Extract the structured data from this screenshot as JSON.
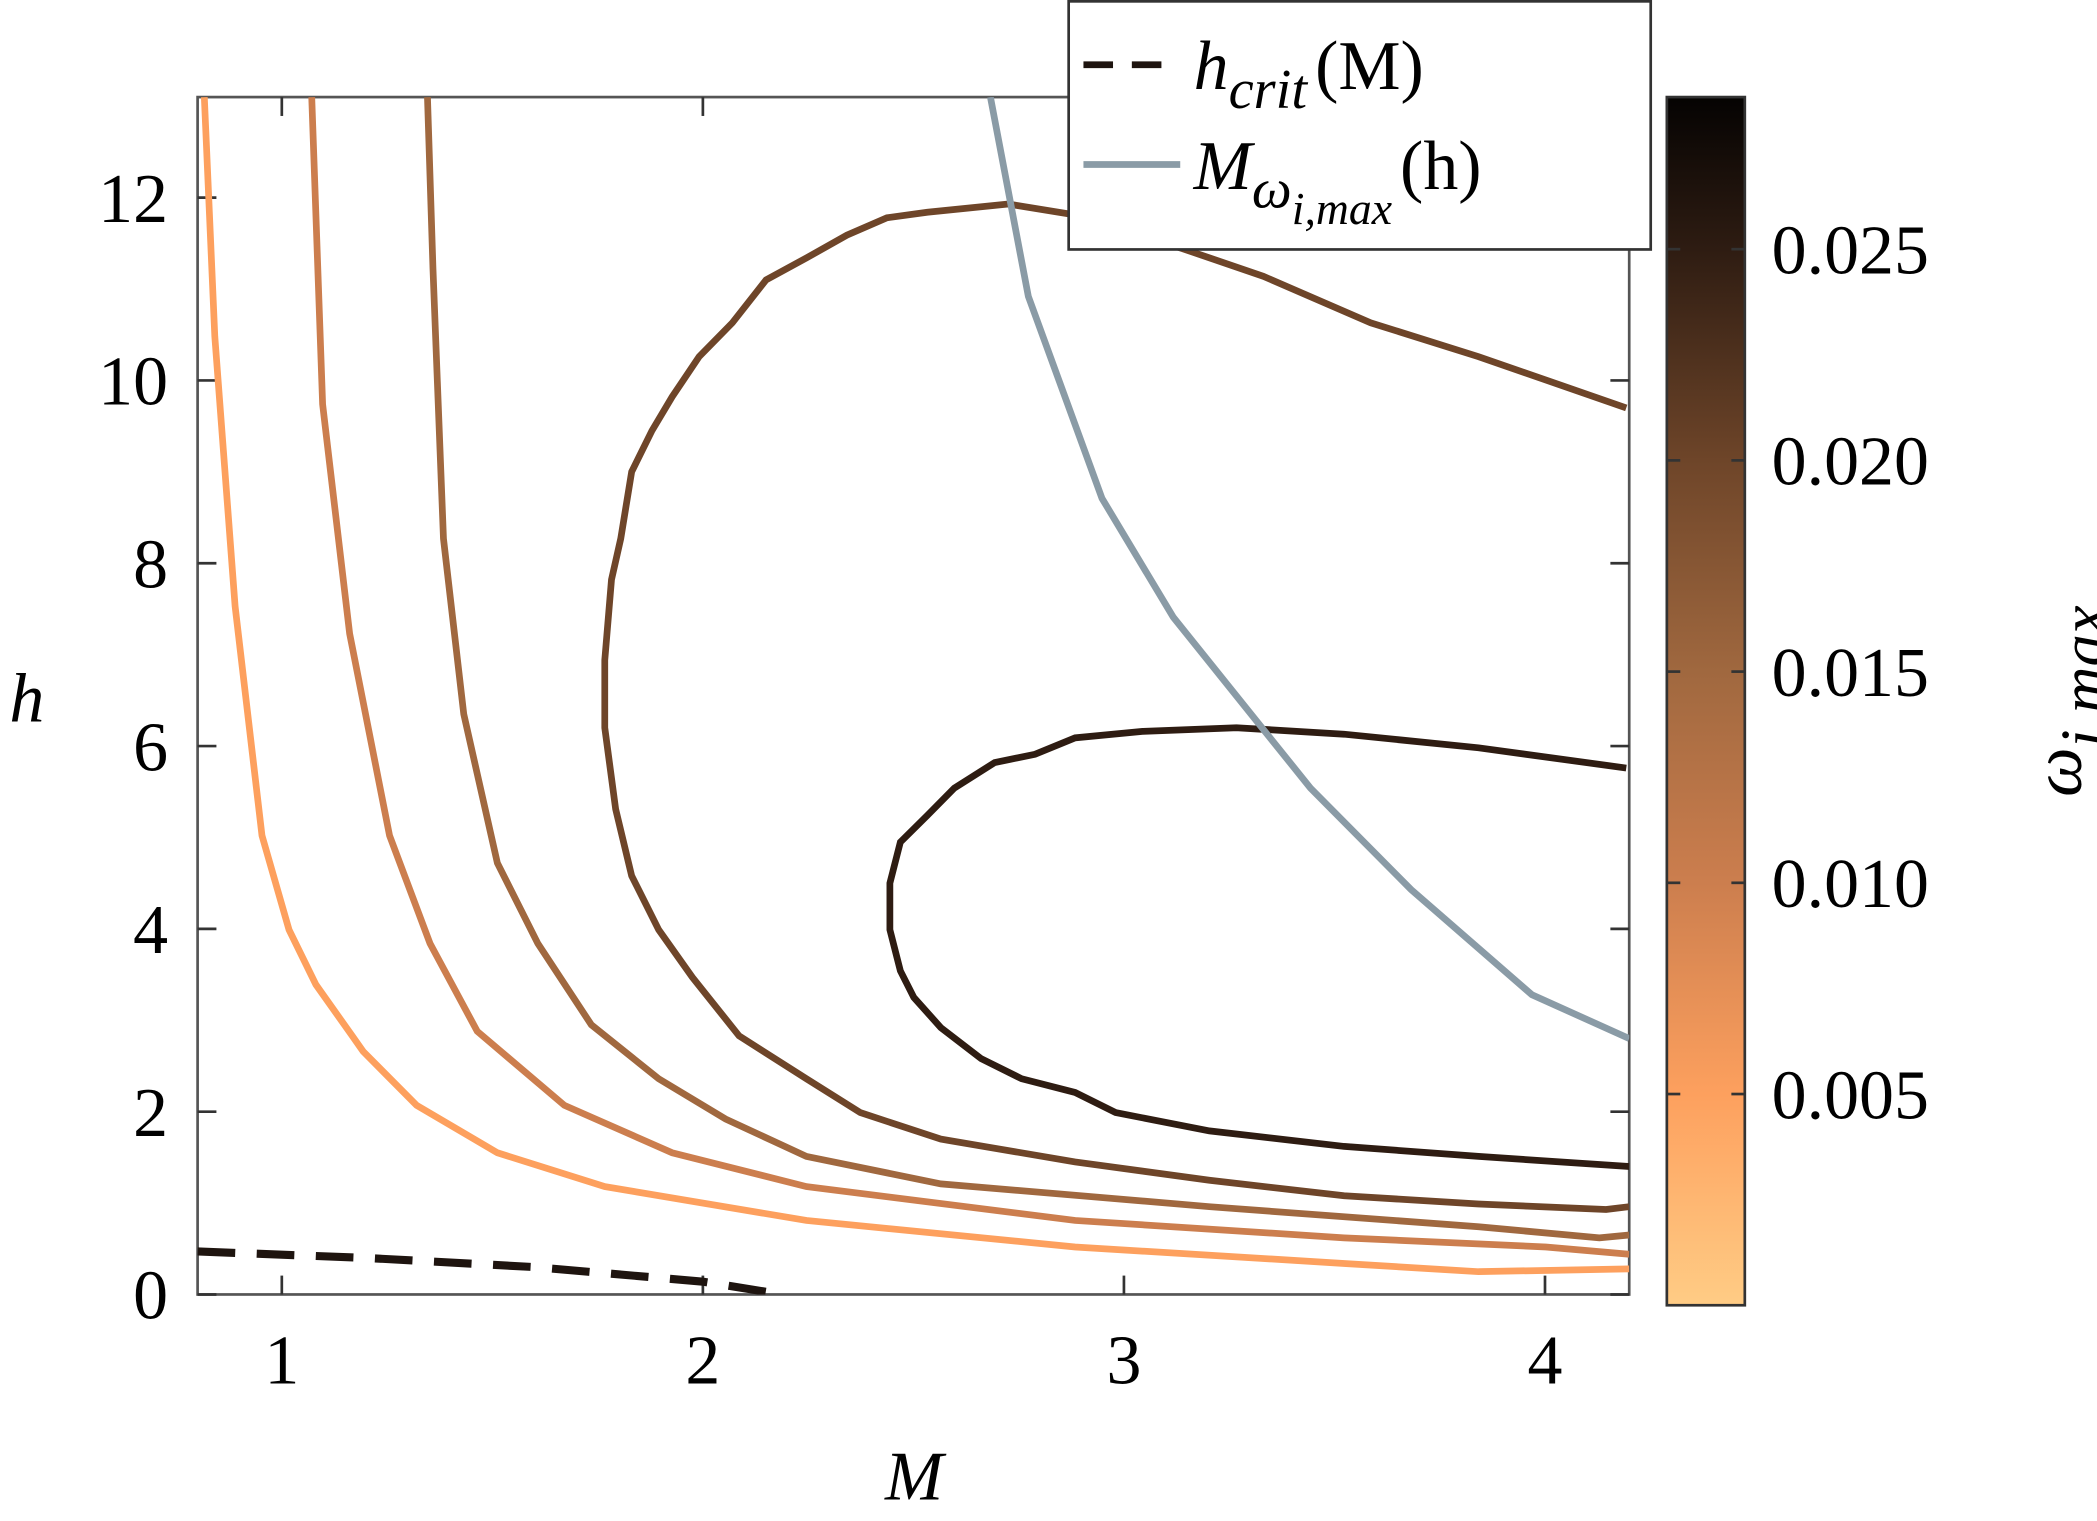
{
  "chart_data": {
    "type": "contour",
    "x_label": "M",
    "y_label": "h",
    "xlim": [
      0.8,
      4.2
    ],
    "xticks": [
      1,
      2,
      3,
      4
    ],
    "ylim": [
      0,
      13.1
    ],
    "yticks": [
      0,
      2,
      4,
      6,
      8,
      10,
      12
    ],
    "colorbar": {
      "label": "ω",
      "label_sub": "i,max",
      "clim": [
        0,
        0.0286
      ],
      "ticks": [
        0.005,
        {
          "value": 0.01,
          "label": "0.010"
        },
        0.015,
        {
          "value": 0.02,
          "label": "0.020"
        },
        0.025
      ],
      "colormap": [
        {
          "value": 0,
          "color": "#ffcc85"
        },
        {
          "value": 0.005,
          "color": "#fda05e"
        },
        {
          "value": 0.01,
          "color": "#cc7e4e"
        },
        {
          "value": 0.015,
          "color": "#a0683f"
        },
        {
          "value": 0.02,
          "color": "#6e4529"
        },
        {
          "value": 0.025,
          "color": "#2e1c12"
        },
        {
          "value": 0.0286,
          "color": "#050302"
        }
      ]
    },
    "contours": [
      {
        "level": 0.005,
        "M": [
          0.816,
          0.841,
          0.889,
          0.953,
          1.017,
          1.081,
          1.167,
          1.193,
          1.32,
          1.512,
          1.767,
          2.246,
          2.884,
          3.523,
          3.842,
          4.2
        ],
        "h": [
          13.1,
          10.48,
          7.53,
          5.02,
          3.99,
          3.39,
          2.83,
          2.66,
          2.07,
          1.55,
          1.18,
          0.81,
          0.52,
          0.34,
          0.25,
          0.28
        ]
      },
      {
        "level": 0.01,
        "M": [
          1.071,
          1.097,
          1.161,
          1.256,
          1.352,
          1.464,
          1.671,
          1.927,
          2.246,
          2.884,
          3.523,
          4.002,
          4.2
        ],
        "h": [
          13.1,
          9.74,
          7.23,
          5.02,
          3.84,
          2.88,
          2.07,
          1.55,
          1.18,
          0.81,
          0.62,
          0.52,
          0.44
        ]
      },
      {
        "level": 0.015,
        "M": [
          1.346,
          1.359,
          1.384,
          1.432,
          1.512,
          1.608,
          1.735,
          1.895,
          2.054,
          2.246,
          2.565,
          3.203,
          3.842,
          4.129,
          4.2
        ],
        "h": [
          13.1,
          11.22,
          8.27,
          6.35,
          4.72,
          3.84,
          2.95,
          2.36,
          1.92,
          1.51,
          1.21,
          0.96,
          0.74,
          0.62,
          0.65
        ]
      },
      {
        "level": 0.02,
        "M": [
          4.193,
          3.842,
          3.586,
          3.331,
          3.14,
          2.884,
          2.725,
          2.533,
          2.437,
          2.342,
          2.246,
          2.15,
          2.07,
          1.991,
          1.927,
          1.879,
          1.831,
          1.805,
          1.783,
          1.767,
          1.767,
          1.793,
          1.831,
          1.895,
          1.975,
          2.086,
          2.246,
          2.374,
          2.565,
          2.884,
          3.203,
          3.523,
          3.842,
          4.145,
          4.2
        ],
        "h": [
          9.7,
          10.26,
          10.63,
          11.14,
          11.44,
          11.81,
          11.93,
          11.84,
          11.78,
          11.59,
          11.34,
          11.1,
          10.63,
          10.26,
          9.82,
          9.45,
          9.0,
          8.27,
          7.82,
          6.94,
          6.2,
          5.31,
          4.58,
          3.99,
          3.47,
          2.83,
          2.36,
          1.99,
          1.7,
          1.45,
          1.25,
          1.08,
          0.99,
          0.93,
          0.96
        ]
      },
      {
        "level": 0.025,
        "M": [
          4.193,
          3.842,
          3.523,
          3.267,
          3.044,
          2.884,
          2.789,
          2.693,
          2.597,
          2.533,
          2.469,
          2.444,
          2.444,
          2.469,
          2.501,
          2.565,
          2.661,
          2.757,
          2.884,
          2.98,
          3.203,
          3.523,
          3.842,
          4.2
        ],
        "h": [
          5.76,
          5.98,
          6.13,
          6.2,
          6.16,
          6.09,
          5.91,
          5.82,
          5.54,
          5.24,
          4.95,
          4.5,
          3.99,
          3.54,
          3.25,
          2.92,
          2.58,
          2.36,
          2.21,
          1.99,
          1.79,
          1.62,
          1.51,
          1.4
        ]
      }
    ],
    "series": [
      {
        "name": "h",
        "name_sub": "crit",
        "name_suffix": "(M)",
        "color": "#1e140f",
        "dashed": true,
        "x": [
          0.8,
          1.2,
          1.6,
          2.0,
          2.19
        ],
        "y": [
          0.47,
          0.4,
          0.3,
          0.14,
          0
        ]
      },
      {
        "name": "M",
        "name_sub": "ω",
        "name_subsub": "i,max",
        "name_suffix": "(h)",
        "color": "#8a9ba6",
        "dashed": false,
        "x": [
          2.683,
          2.773,
          2.948,
          3.117,
          3.443,
          3.682,
          3.969,
          4.2
        ],
        "y": [
          13.1,
          10.92,
          8.71,
          7.41,
          5.54,
          4.43,
          3.28,
          2.8
        ]
      }
    ]
  }
}
